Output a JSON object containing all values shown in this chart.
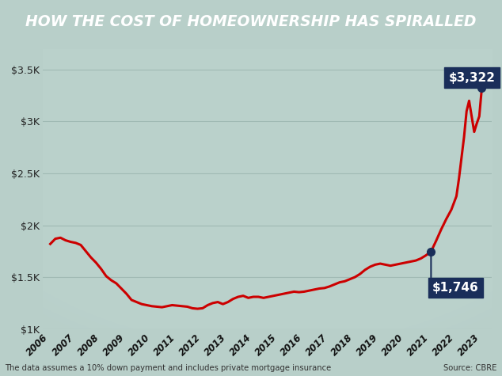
{
  "title": "HOW THE COST OF HOMEOWNERSHIP HAS SPIRALLED",
  "title_bg": "#000000",
  "title_color": "#ffffff",
  "line_color": "#cc0000",
  "line_width": 2.2,
  "bg_color": "#b8cfc9",
  "plot_bg_color": "#b8cfc9",
  "grid_color": "#9ab5af",
  "annotation_bg": "#1a2e5a",
  "annotation_text_color": "#ffffff",
  "footnote": "The data assumes a 10% down payment and includes private mortgage insurance",
  "source": "Source: CBRE",
  "ylim_min": 1000,
  "ylim_max": 3700,
  "yticks": [
    1000,
    1500,
    2000,
    2500,
    3000,
    3500
  ],
  "ytick_labels": [
    "$1K",
    "$1.5K",
    "$2K",
    "$2.5K",
    "$3K",
    "$3.5K"
  ],
  "annotation_1_label": "$1,746",
  "annotation_1_year": 2021.0,
  "annotation_1_value": 1746,
  "annotation_2_label": "$3,322",
  "annotation_2_year": 2023.0,
  "annotation_2_value": 3322,
  "years": [
    2006,
    2007,
    2008,
    2009,
    2010,
    2011,
    2012,
    2013,
    2014,
    2015,
    2016,
    2017,
    2018,
    2019,
    2020,
    2021,
    2022,
    2023
  ],
  "data": [
    [
      2006.0,
      1820
    ],
    [
      2006.2,
      1870
    ],
    [
      2006.4,
      1880
    ],
    [
      2006.6,
      1855
    ],
    [
      2006.8,
      1840
    ],
    [
      2007.0,
      1830
    ],
    [
      2007.2,
      1810
    ],
    [
      2007.4,
      1750
    ],
    [
      2007.6,
      1690
    ],
    [
      2007.8,
      1640
    ],
    [
      2008.0,
      1580
    ],
    [
      2008.2,
      1510
    ],
    [
      2008.4,
      1470
    ],
    [
      2008.6,
      1440
    ],
    [
      2008.8,
      1390
    ],
    [
      2009.0,
      1340
    ],
    [
      2009.2,
      1280
    ],
    [
      2009.4,
      1260
    ],
    [
      2009.6,
      1240
    ],
    [
      2009.8,
      1230
    ],
    [
      2010.0,
      1220
    ],
    [
      2010.2,
      1215
    ],
    [
      2010.4,
      1210
    ],
    [
      2010.6,
      1220
    ],
    [
      2010.8,
      1230
    ],
    [
      2011.0,
      1225
    ],
    [
      2011.2,
      1220
    ],
    [
      2011.4,
      1215
    ],
    [
      2011.6,
      1200
    ],
    [
      2011.8,
      1195
    ],
    [
      2012.0,
      1200
    ],
    [
      2012.2,
      1230
    ],
    [
      2012.4,
      1250
    ],
    [
      2012.6,
      1260
    ],
    [
      2012.8,
      1240
    ],
    [
      2013.0,
      1260
    ],
    [
      2013.2,
      1290
    ],
    [
      2013.4,
      1310
    ],
    [
      2013.6,
      1320
    ],
    [
      2013.8,
      1300
    ],
    [
      2014.0,
      1310
    ],
    [
      2014.2,
      1310
    ],
    [
      2014.4,
      1300
    ],
    [
      2014.6,
      1310
    ],
    [
      2014.8,
      1320
    ],
    [
      2015.0,
      1330
    ],
    [
      2015.2,
      1340
    ],
    [
      2015.4,
      1350
    ],
    [
      2015.6,
      1360
    ],
    [
      2015.8,
      1355
    ],
    [
      2016.0,
      1360
    ],
    [
      2016.2,
      1370
    ],
    [
      2016.4,
      1380
    ],
    [
      2016.6,
      1390
    ],
    [
      2016.8,
      1395
    ],
    [
      2017.0,
      1410
    ],
    [
      2017.2,
      1430
    ],
    [
      2017.4,
      1450
    ],
    [
      2017.6,
      1460
    ],
    [
      2017.8,
      1480
    ],
    [
      2018.0,
      1500
    ],
    [
      2018.2,
      1530
    ],
    [
      2018.4,
      1570
    ],
    [
      2018.6,
      1600
    ],
    [
      2018.8,
      1620
    ],
    [
      2019.0,
      1630
    ],
    [
      2019.2,
      1620
    ],
    [
      2019.4,
      1610
    ],
    [
      2019.6,
      1620
    ],
    [
      2019.8,
      1630
    ],
    [
      2020.0,
      1640
    ],
    [
      2020.2,
      1650
    ],
    [
      2020.4,
      1660
    ],
    [
      2020.6,
      1680
    ],
    [
      2020.8,
      1710
    ],
    [
      2021.0,
      1746
    ],
    [
      2021.2,
      1850
    ],
    [
      2021.4,
      1960
    ],
    [
      2021.6,
      2060
    ],
    [
      2021.8,
      2150
    ],
    [
      2022.0,
      2280
    ],
    [
      2022.1,
      2450
    ],
    [
      2022.2,
      2650
    ],
    [
      2022.3,
      2850
    ],
    [
      2022.4,
      3100
    ],
    [
      2022.5,
      3200
    ],
    [
      2022.6,
      3050
    ],
    [
      2022.7,
      2900
    ],
    [
      2022.8,
      2980
    ],
    [
      2022.9,
      3050
    ],
    [
      2023.0,
      3322
    ]
  ]
}
